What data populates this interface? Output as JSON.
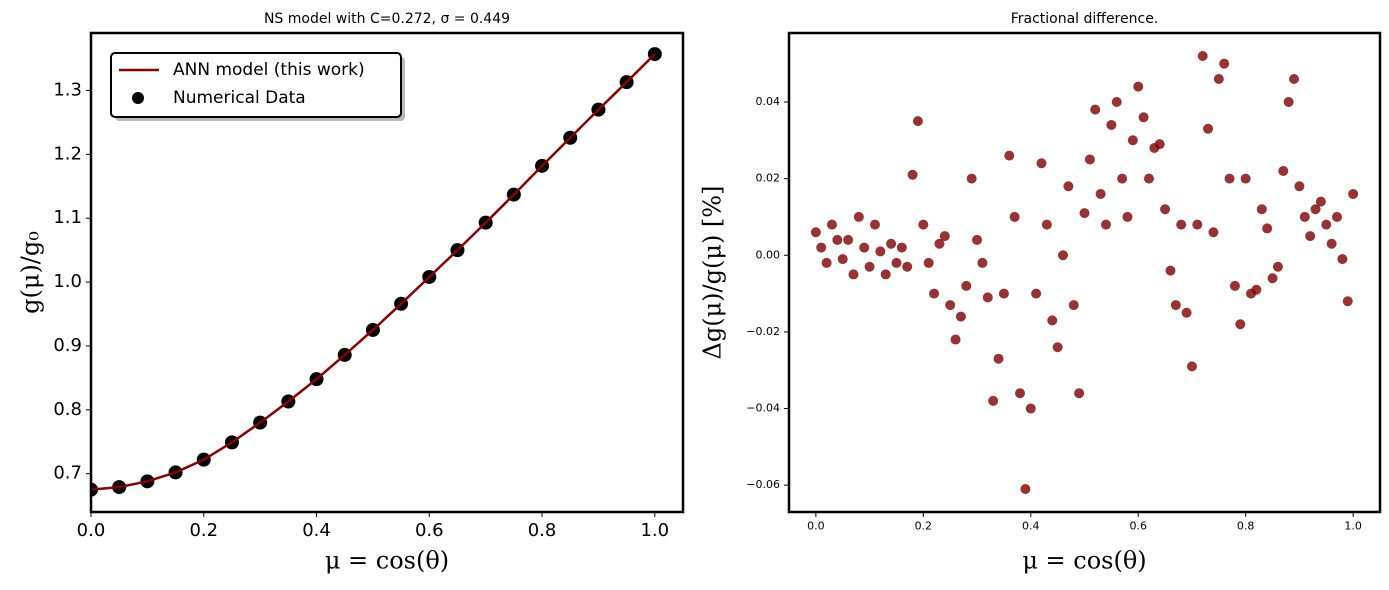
{
  "chart_data": [
    {
      "type": "line",
      "title": "NS model with C=0.272, σ = 0.449",
      "xlabel": "μ = cos(θ)",
      "ylabel": "g(μ)/g₀",
      "x": [
        0,
        0.05,
        0.1,
        0.15,
        0.2,
        0.25,
        0.3,
        0.35,
        0.4,
        0.45,
        0.5,
        0.55,
        0.6,
        0.65,
        0.7,
        0.75,
        0.8,
        0.85,
        0.9,
        0.95,
        1.0
      ],
      "series": [
        {
          "name": "Numerical Data",
          "type": "scatter",
          "color": "#000000",
          "values": [
            0.675,
            0.679,
            0.688,
            0.702,
            0.722,
            0.749,
            0.78,
            0.813,
            0.848,
            0.886,
            0.925,
            0.966,
            1.008,
            1.05,
            1.093,
            1.137,
            1.182,
            1.226,
            1.27,
            1.313,
            1.357
          ]
        },
        {
          "name": "ANN model (this work)",
          "type": "line",
          "color": "#8b0000",
          "values": [
            0.675,
            0.679,
            0.688,
            0.702,
            0.722,
            0.749,
            0.78,
            0.813,
            0.848,
            0.886,
            0.925,
            0.966,
            1.008,
            1.05,
            1.093,
            1.137,
            1.182,
            1.226,
            1.27,
            1.313,
            1.357
          ]
        }
      ],
      "legend": "upper left",
      "xlim": [
        0,
        1.05
      ],
      "ylim": [
        0.64,
        1.39
      ],
      "xticks": [
        {
          "value": 0,
          "label": "0.0"
        },
        0.2,
        0.4,
        0.6,
        0.8,
        {
          "value": 1,
          "label": "1.0"
        }
      ],
      "yticks": [
        0.7,
        0.8,
        0.9,
        {
          "value": 1,
          "label": "1.0"
        },
        1.1,
        1.2,
        1.3
      ]
    },
    {
      "type": "scatter",
      "title": "Fractional difference.",
      "xlabel": "μ = cos(θ)",
      "ylabel": "Δg(μ)/g(μ)  [%]",
      "color": "#800000",
      "x": [
        0.0,
        0.01,
        0.02,
        0.03,
        0.04,
        0.05,
        0.06,
        0.07,
        0.08,
        0.09,
        0.1,
        0.11,
        0.12,
        0.13,
        0.14,
        0.15,
        0.16,
        0.17,
        0.18,
        0.19,
        0.2,
        0.21,
        0.22,
        0.23,
        0.24,
        0.25,
        0.26,
        0.27,
        0.28,
        0.29,
        0.3,
        0.31,
        0.32,
        0.33,
        0.34,
        0.35,
        0.36,
        0.37,
        0.38,
        0.39,
        0.4,
        0.41,
        0.42,
        0.43,
        0.44,
        0.45,
        0.46,
        0.47,
        0.48,
        0.49,
        0.5,
        0.51,
        0.52,
        0.53,
        0.54,
        0.55,
        0.56,
        0.57,
        0.58,
        0.59,
        0.6,
        0.61,
        0.62,
        0.63,
        0.64,
        0.65,
        0.66,
        0.67,
        0.68,
        0.69,
        0.7,
        0.71,
        0.72,
        0.73,
        0.74,
        0.75,
        0.76,
        0.77,
        0.78,
        0.79,
        0.8,
        0.81,
        0.82,
        0.83,
        0.84,
        0.85,
        0.86,
        0.87,
        0.88,
        0.89,
        0.9,
        0.91,
        0.92,
        0.93,
        0.94,
        0.95,
        0.96,
        0.97,
        0.98,
        0.99,
        1.0
      ],
      "values": [
        0.006,
        0.002,
        -0.002,
        0.008,
        0.004,
        -0.001,
        0.004,
        -0.005,
        0.01,
        0.002,
        -0.003,
        0.008,
        0.001,
        -0.005,
        0.003,
        -0.002,
        0.002,
        -0.003,
        0.021,
        0.035,
        0.008,
        -0.002,
        -0.01,
        0.003,
        0.005,
        -0.013,
        -0.022,
        -0.016,
        -0.008,
        0.02,
        0.004,
        -0.002,
        -0.011,
        -0.038,
        -0.027,
        -0.01,
        0.026,
        0.01,
        -0.036,
        -0.061,
        -0.04,
        -0.01,
        0.024,
        0.008,
        -0.017,
        -0.024,
        0.0,
        0.018,
        -0.013,
        -0.036,
        0.011,
        0.025,
        0.038,
        0.016,
        0.008,
        0.034,
        0.04,
        0.02,
        0.01,
        0.03,
        0.044,
        0.036,
        0.02,
        0.028,
        0.029,
        0.012,
        -0.004,
        -0.013,
        0.008,
        -0.015,
        -0.029,
        0.008,
        0.052,
        0.033,
        0.006,
        0.046,
        0.05,
        0.02,
        -0.008,
        -0.018,
        0.02,
        -0.01,
        -0.009,
        0.012,
        0.007,
        -0.006,
        -0.003,
        0.022,
        0.04,
        0.046,
        0.018,
        0.01,
        0.005,
        0.012,
        0.014,
        0.008,
        0.003,
        0.01,
        -0.001,
        -0.012,
        0.016
      ],
      "xlim": [
        -0.05,
        1.05
      ],
      "ylim": [
        -0.067,
        0.058
      ],
      "xticks": [
        {
          "value": 0,
          "label": "0.0"
        },
        0.2,
        0.4,
        0.6,
        0.8,
        {
          "value": 1,
          "label": "1.0"
        }
      ],
      "yticks": [
        {
          "value": -0.06,
          "label": "−0.06"
        },
        {
          "value": -0.04,
          "label": "−0.04"
        },
        {
          "value": -0.02,
          "label": "−0.02"
        },
        {
          "value": 0,
          "label": "0.00"
        },
        {
          "value": 0.02,
          "label": "0.02"
        },
        {
          "value": 0.04,
          "label": "0.04"
        }
      ]
    }
  ]
}
